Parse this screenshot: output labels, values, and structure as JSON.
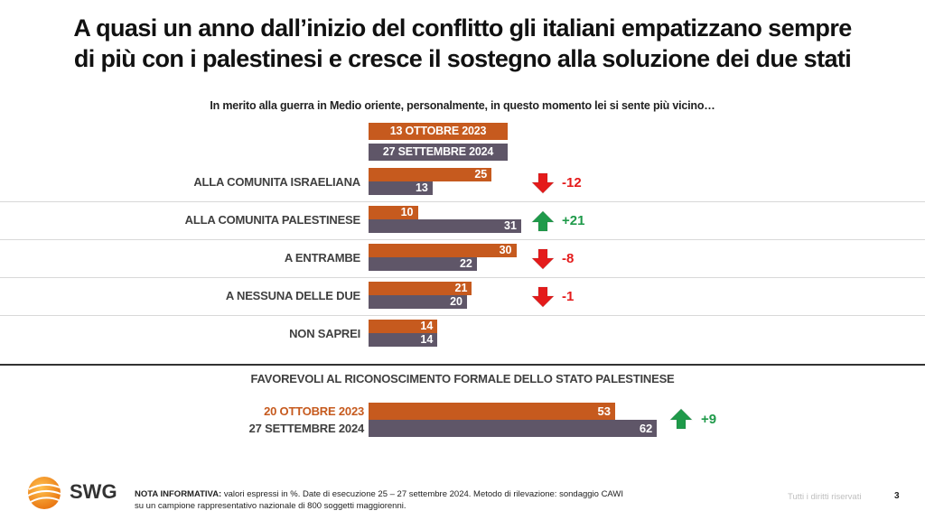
{
  "title_line1": "A quasi un anno dall’inizio del conflitto gli italiani empatizzano sempre",
  "title_line2": "di più con i palestinesi e cresce il sostegno alla soluzione dei due stati",
  "chart_data": [
    {
      "type": "bar",
      "orientation": "horizontal",
      "title": "In merito alla guerra in Medio oriente, personalmente, in questo momento lei si sente più vicino…",
      "categories": [
        "ALLA COMUNITA ISRAELIANA",
        "ALLA COMUNITA PALESTINESE",
        "A ENTRAMBE",
        "A NESSUNA DELLE DUE",
        "NON SAPREI"
      ],
      "series": [
        {
          "name": "13 OTTOBRE 2023",
          "color": "#c65a1e",
          "values": [
            25,
            10,
            30,
            21,
            14
          ]
        },
        {
          "name": "27 SETTEMBRE 2024",
          "color": "#5f5668",
          "values": [
            13,
            31,
            22,
            20,
            14
          ]
        }
      ],
      "deltas": [
        {
          "label": "-12",
          "direction": "down"
        },
        {
          "label": "+21",
          "direction": "up"
        },
        {
          "label": "-8",
          "direction": "down"
        },
        {
          "label": "-1",
          "direction": "down"
        },
        null
      ],
      "unit": "%",
      "legend": "top"
    },
    {
      "type": "bar",
      "orientation": "horizontal",
      "title": "FAVOREVOLI AL RICONOSCIMENTO FORMALE DELLO STATO PALESTINESE",
      "categories": [
        "20 OTTOBRE 2023",
        "27 SETTEMBRE 2024"
      ],
      "series": [
        {
          "name": "Favorevoli",
          "values": [
            53,
            62
          ],
          "colors": [
            "#c65a1e",
            "#5f5668"
          ]
        }
      ],
      "delta": {
        "label": "+9",
        "direction": "up"
      },
      "unit": "%"
    }
  ],
  "colors": {
    "series_2023": "#c65a1e",
    "series_2024": "#5f5668",
    "negative": "#e41b1b",
    "positive": "#1f9a4a"
  },
  "footer": {
    "brand": "SWG",
    "note_label": "NOTA INFORMATIVA:",
    "note_line1": " valori espressi in %. Date di esecuzione 25 – 27 settembre 2024. Metodo di rilevazione: sondaggio CAWI",
    "note_line2": "su un campione rappresentativo nazionale di 800 soggetti maggiorenni.",
    "rights": "Tutti i diritti riservati",
    "page": "3"
  }
}
